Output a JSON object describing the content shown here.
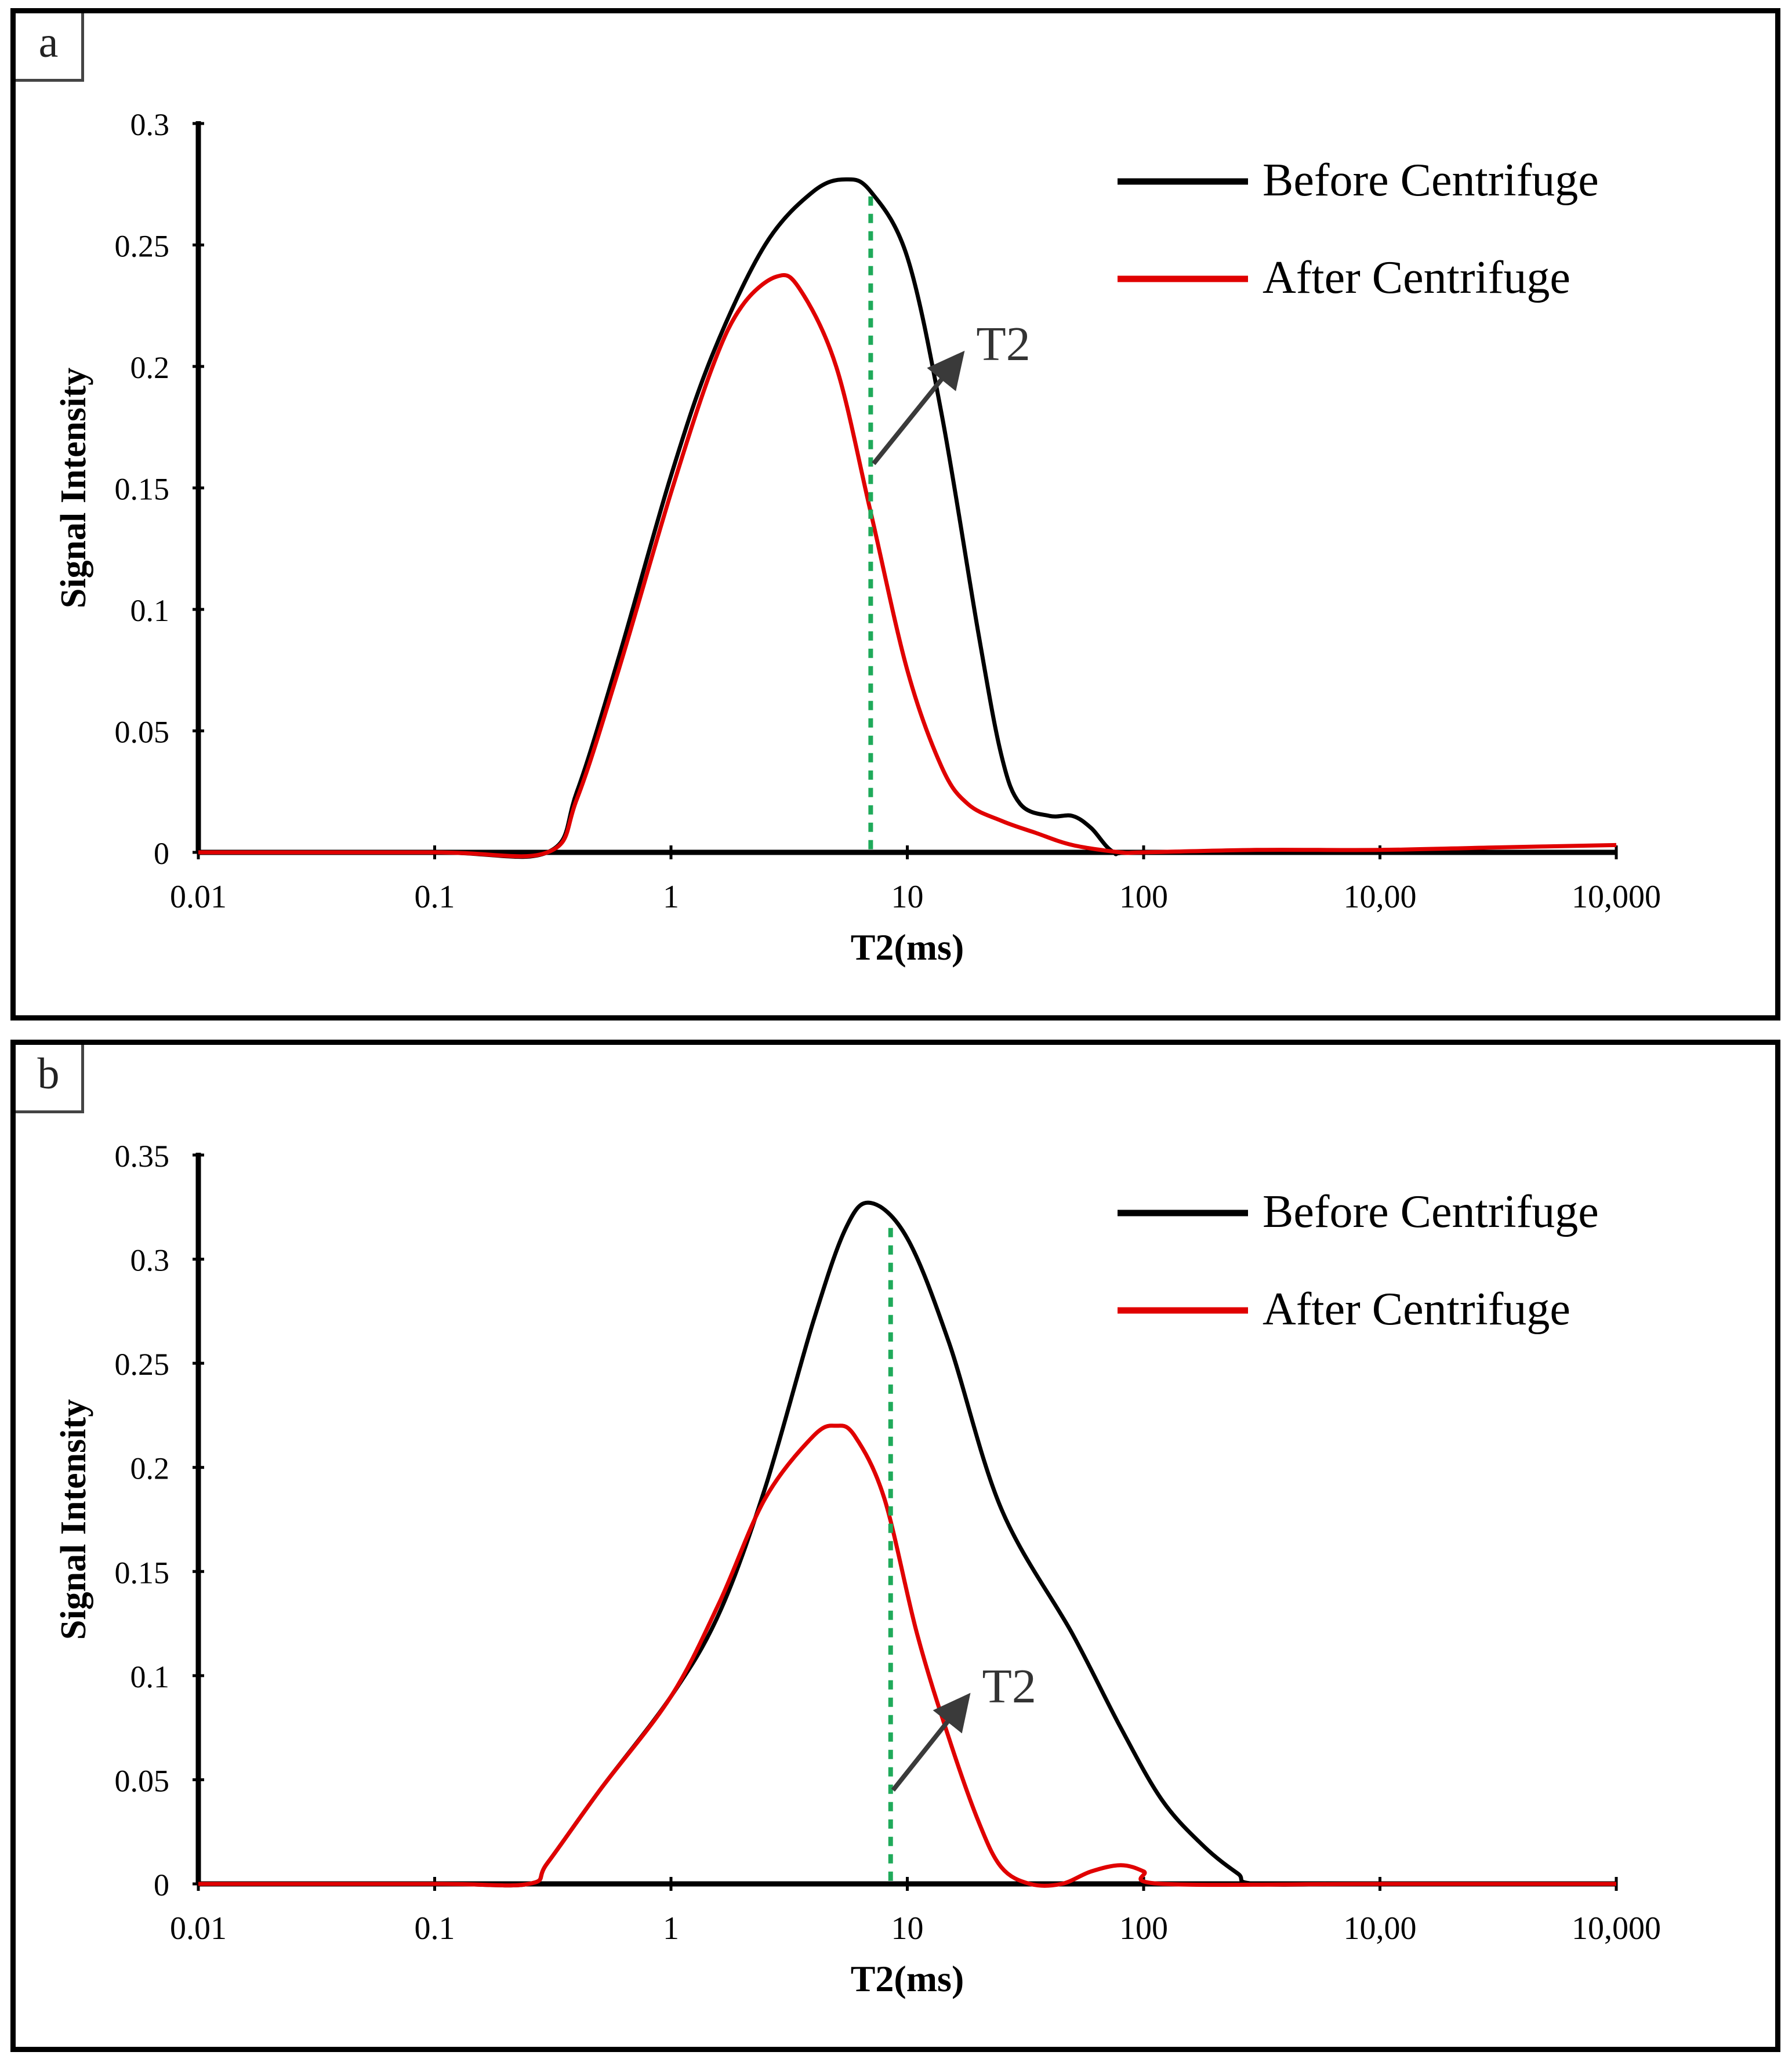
{
  "chart_data": [
    {
      "panel_label": "a",
      "type": "line",
      "xscale": "log",
      "xlim": [
        0.01,
        10000
      ],
      "ylim": [
        0,
        0.3
      ],
      "xlabel": "T2(ms)",
      "ylabel": "Signal Intensity",
      "x_tick_labels": [
        "0.01",
        "0.1",
        "1",
        "10",
        "100",
        "10,00",
        "10,000"
      ],
      "y_tick_labels": [
        "0",
        "0.05",
        "0.1",
        "0.15",
        "0.2",
        "0.25",
        "0.3"
      ],
      "y_ticks": [
        0,
        0.05,
        0.1,
        0.15,
        0.2,
        0.25,
        0.3
      ],
      "legend_position": "top-right",
      "threshold_t2": 7,
      "annotation": {
        "text": "T2",
        "from": [
          7.2,
          0.16
        ],
        "to": [
          17,
          0.205
        ]
      },
      "series": [
        {
          "name": "Before Centrifuge",
          "color": "#000000",
          "x": [
            0.01,
            0.1,
            0.3,
            0.4,
            0.6,
            1.0,
            1.5,
            2.5,
            4.0,
            5.5,
            7.0,
            10.0,
            14.0,
            20.0,
            25.0,
            30.0,
            40.0,
            50.0,
            60.0,
            75.0,
            100,
            1000,
            10000
          ],
          "y": [
            0,
            0,
            0,
            0.025,
            0.08,
            0.155,
            0.205,
            0.25,
            0.272,
            0.277,
            0.272,
            0.245,
            0.18,
            0.09,
            0.04,
            0.02,
            0.015,
            0.015,
            0.01,
            0,
            0,
            0,
            0
          ]
        },
        {
          "name": "After Centrifuge",
          "color": "#e00000",
          "x": [
            0.01,
            0.1,
            0.3,
            0.4,
            0.6,
            1.0,
            1.5,
            2.0,
            2.8,
            3.5,
            5.0,
            7.0,
            10.0,
            14.0,
            18.0,
            25.0,
            35.0,
            50.0,
            80.0,
            100,
            300,
            1000,
            3000,
            10000
          ],
          "y": [
            0,
            0,
            0,
            0.022,
            0.075,
            0.148,
            0.2,
            0.225,
            0.237,
            0.232,
            0.2,
            0.14,
            0.075,
            0.035,
            0.02,
            0.013,
            0.008,
            0.003,
            0,
            0,
            0.001,
            0.001,
            0.002,
            0.003
          ]
        }
      ]
    },
    {
      "panel_label": "b",
      "type": "line",
      "xscale": "log",
      "xlim": [
        0.01,
        10000
      ],
      "ylim": [
        0,
        0.35
      ],
      "xlabel": "T2(ms)",
      "ylabel": "Signal Intensity",
      "x_tick_labels": [
        "0.01",
        "0.1",
        "1",
        "10",
        "100",
        "10,00",
        "10,000"
      ],
      "y_tick_labels": [
        "0",
        "0.05",
        "0.1",
        "0.15",
        "0.2",
        "0.25",
        "0.3",
        "0.35"
      ],
      "y_ticks": [
        0,
        0.05,
        0.1,
        0.15,
        0.2,
        0.25,
        0.3,
        0.35
      ],
      "legend_position": "top-right",
      "threshold_t2": 8.5,
      "annotation": {
        "text": "T2",
        "from": [
          8.7,
          0.045
        ],
        "to": [
          18,
          0.09
        ]
      },
      "series": [
        {
          "name": "Before Centrifuge",
          "color": "#000000",
          "x": [
            0.01,
            0.1,
            0.25,
            0.3,
            0.5,
            1.0,
            1.6,
            2.5,
            4.0,
            5.5,
            7.0,
            10.0,
            15.0,
            25.0,
            50.0,
            80.0,
            120,
            180,
            250,
            300,
            1000,
            10000
          ],
          "y": [
            0,
            0,
            0,
            0.01,
            0.045,
            0.09,
            0.13,
            0.19,
            0.27,
            0.315,
            0.327,
            0.31,
            0.26,
            0.18,
            0.12,
            0.075,
            0.04,
            0.018,
            0.005,
            0,
            0,
            0
          ]
        },
        {
          "name": "After Centrifuge",
          "color": "#e00000",
          "x": [
            0.01,
            0.1,
            0.25,
            0.3,
            0.5,
            1.0,
            1.6,
            2.5,
            4.0,
            5.0,
            6.0,
            8.0,
            11.0,
            15.0,
            20.0,
            25.0,
            33.0,
            45.0,
            60.0,
            80.0,
            100,
            120,
            1000,
            10000
          ],
          "y": [
            0,
            0,
            0,
            0.01,
            0.045,
            0.09,
            0.135,
            0.185,
            0.215,
            0.22,
            0.215,
            0.185,
            0.12,
            0.07,
            0.03,
            0.008,
            0,
            0,
            0.006,
            0.009,
            0.006,
            0,
            0,
            0
          ]
        }
      ]
    }
  ]
}
